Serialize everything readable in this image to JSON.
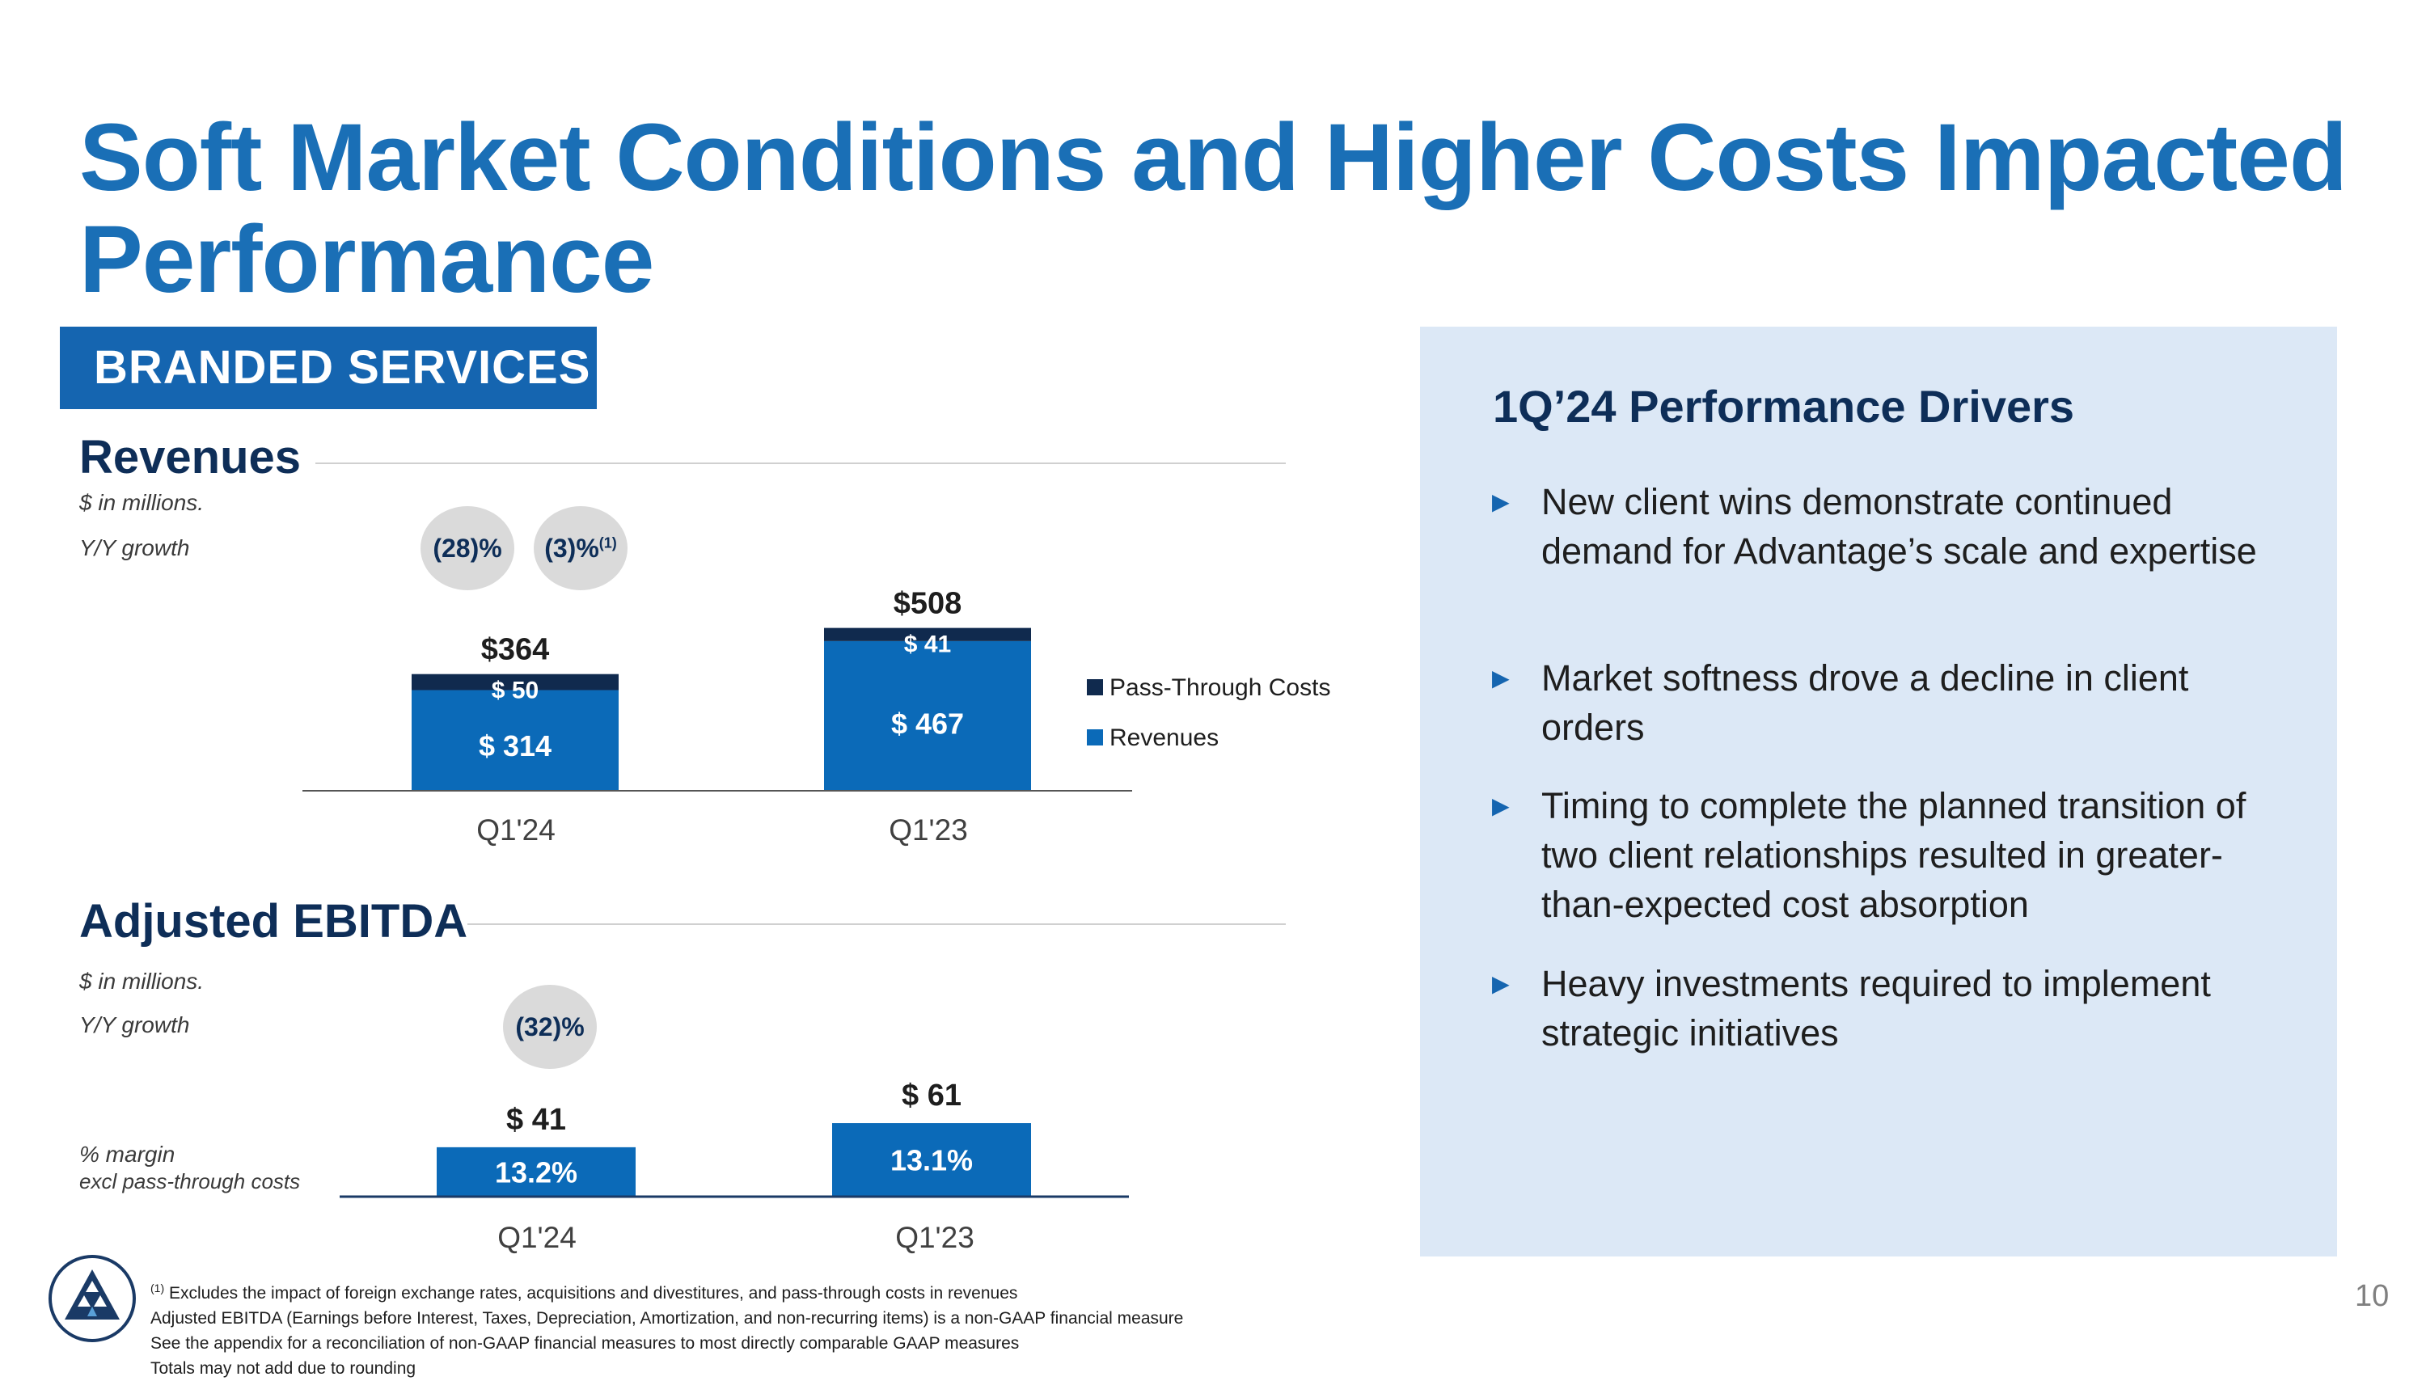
{
  "title": "Soft Market Conditions and Higher Costs Impacted Performance",
  "section_tag": "BRANDED SERVICES",
  "colors": {
    "brand_blue": "#1a6fb6",
    "bar_blue": "#0b6ab8",
    "bar_navy": "#102a4e",
    "panel_bg": "#dce8f6"
  },
  "revenues": {
    "heading": "Revenues",
    "unit_note": "$ in millions.",
    "growth_label": "Y/Y growth",
    "growth_badges": [
      {
        "value": "(28)%",
        "sup": ""
      },
      {
        "value": "(3)%",
        "sup": "(1)"
      }
    ]
  },
  "ebitda": {
    "heading": "Adjusted EBITDA",
    "unit_note": "$ in millions.",
    "growth_label": "Y/Y growth",
    "growth_badge": "(32)%",
    "margin_label_1": "% margin",
    "margin_label_2": "excl pass-through costs"
  },
  "chart_data": [
    {
      "type": "bar",
      "stacked": true,
      "title": "Revenues",
      "categories": [
        "Q1'24",
        "Q1'23"
      ],
      "series": [
        {
          "name": "Revenues",
          "values": [
            314,
            467
          ],
          "labels": [
            "$ 314",
            "$ 467"
          ],
          "color": "#0b6ab8"
        },
        {
          "name": "Pass-Through Costs",
          "values": [
            50,
            41
          ],
          "labels": [
            "$ 50",
            "$ 41"
          ],
          "color": "#102a4e"
        }
      ],
      "totals": [
        364,
        508
      ],
      "total_labels": [
        "$364",
        "$508"
      ],
      "legend": [
        "Pass-Through Costs",
        "Revenues"
      ],
      "ylim": [
        0,
        560
      ]
    },
    {
      "type": "bar",
      "title": "Adjusted EBITDA",
      "categories": [
        "Q1'24",
        "Q1'23"
      ],
      "series": [
        {
          "name": "Adjusted EBITDA",
          "values": [
            41,
            61
          ],
          "labels": [
            "$ 41",
            "$ 61"
          ],
          "color": "#0b6ab8"
        }
      ],
      "margins": [
        "13.2%",
        "13.1%"
      ],
      "ylim": [
        0,
        110
      ]
    }
  ],
  "panel": {
    "title": "1Q’24 Performance Drivers",
    "bullet_glyph": "►",
    "bullets": [
      "New client wins demonstrate continued demand for Advantage’s scale and expertise",
      "Market softness drove a decline in client orders",
      "Timing to complete the planned transition of two client relationships resulted in greater-than-expected cost absorption",
      "Heavy investments required to implement strategic initiatives"
    ]
  },
  "footnotes": {
    "sup": "(1)",
    "line1": " Excludes the impact of foreign exchange rates, acquisitions and divestitures, and pass-through costs in revenues",
    "line2": "Adjusted EBITDA (Earnings before Interest, Taxes, Depreciation, Amortization, and non-recurring items) is a non-GAAP financial measure",
    "line3": "See the appendix for a reconciliation of non-GAAP financial measures to most directly comparable GAAP measures",
    "line4": "Totals may not add due to rounding"
  },
  "page_number": "10"
}
